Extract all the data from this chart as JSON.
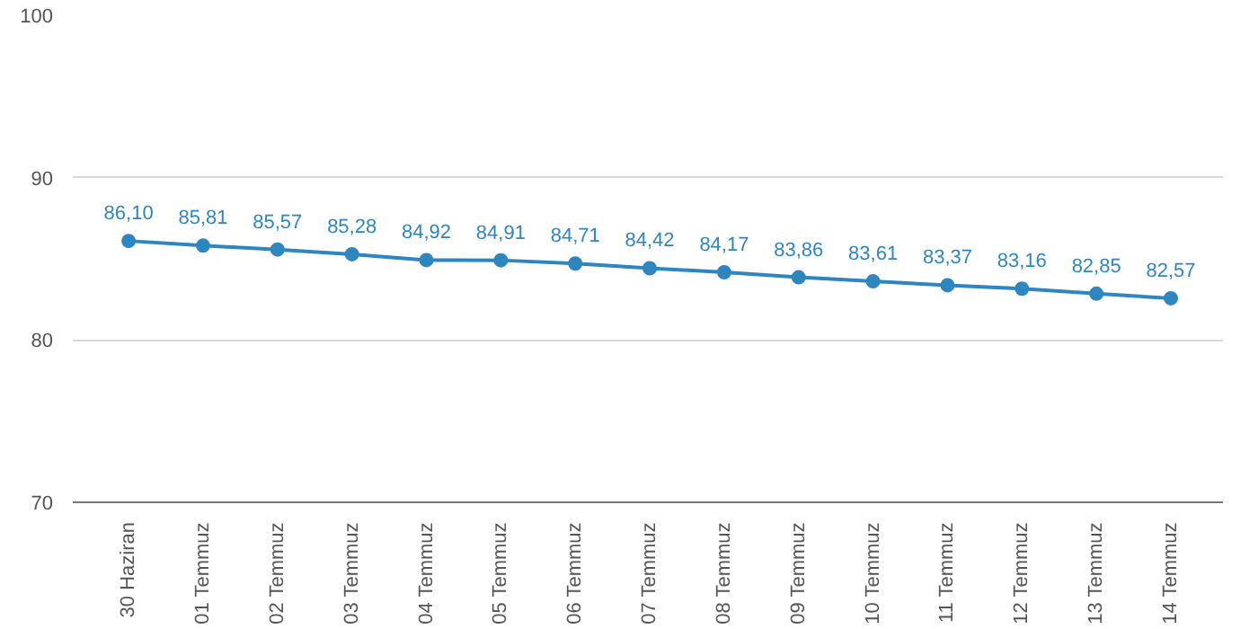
{
  "chart_data": {
    "type": "line",
    "categories": [
      "30 Haziran",
      "01 Temmuz",
      "02 Temmuz",
      "03 Temmuz",
      "04 Temmuz",
      "05 Temmuz",
      "06 Temmuz",
      "07 Temmuz",
      "08 Temmuz",
      "09 Temmuz",
      "10 Temmuz",
      "11 Temmuz",
      "12 Temmuz",
      "13 Temmuz",
      "14 Temmuz"
    ],
    "series": [
      {
        "color": "#2e86c1",
        "values": [
          86.1,
          85.81,
          85.57,
          85.28,
          84.92,
          84.91,
          84.71,
          84.42,
          84.17,
          83.86,
          83.61,
          83.37,
          83.16,
          82.85,
          82.57
        ],
        "value_labels": [
          "86,10",
          "85,81",
          "85,57",
          "85,28",
          "84,92",
          "84,91",
          "84,71",
          "84,42",
          "84,17",
          "83,86",
          "83,61",
          "83,37",
          "83,16",
          "82,85",
          "82,57"
        ]
      }
    ],
    "ylim": [
      70,
      100
    ],
    "yticks": [
      70,
      80,
      90,
      100
    ],
    "grid": "y",
    "marker": "circle",
    "line_style": "solid"
  }
}
